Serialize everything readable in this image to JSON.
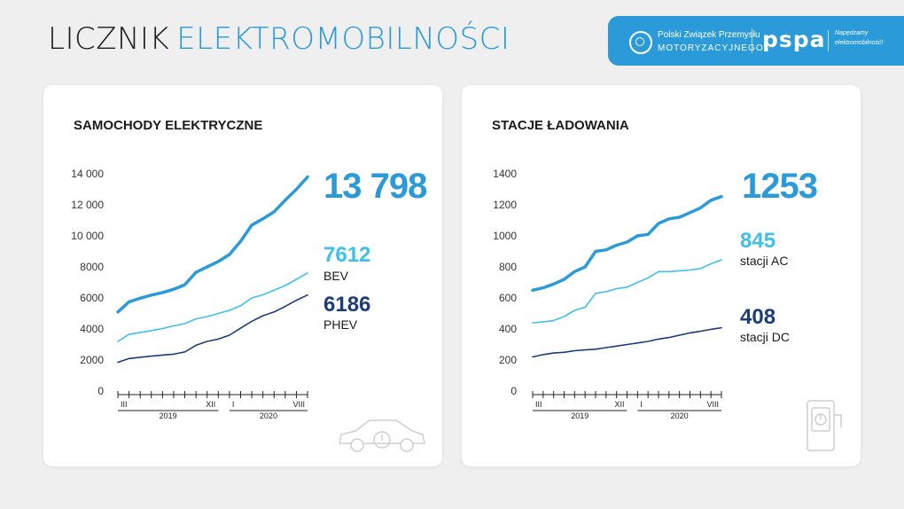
{
  "header": {
    "title_part1": "LICZNIK",
    "title_part2": "ELEKTROMOBILNOŚCI",
    "org1_line1": "Polski Związek Przemysłu",
    "org1_line2": "MOTORYZACYJNEGO",
    "org2_name": "pspa",
    "org2_tagline1": "Napędzamy",
    "org2_tagline2": "elektromobilność!"
  },
  "colors": {
    "accent": "#2a9bd8",
    "light": "#3ec0ea",
    "dark": "#1b3d7a",
    "background": "#efefef"
  },
  "cards": {
    "cars": {
      "title": "SAMOCHODY ELEKTRYCZNE",
      "total": "13 798",
      "s1_value": "7612",
      "s1_label": "BEV",
      "s2_value": "6186",
      "s2_label": "PHEV",
      "icon": "car-icon"
    },
    "stations": {
      "title": "STACJE ŁADOWANIA",
      "total": "1253",
      "s1_value": "845",
      "s1_label": "stacji AC",
      "s2_value": "408",
      "s2_label": "stacji DC",
      "icon": "charger-icon"
    }
  },
  "chart_data": [
    {
      "type": "line",
      "title": "SAMOCHODY ELEKTRYCZNE",
      "ylim": [
        0,
        14000
      ],
      "yticks": [
        "0",
        "2000",
        "4000",
        "6000",
        "8000",
        "10 000",
        "12 000",
        "14 000"
      ],
      "x_tick_labels": [
        "III",
        "XII",
        "I",
        "VIII"
      ],
      "year_labels": [
        "2019",
        "2020"
      ],
      "grid": false,
      "series": [
        {
          "name": "",
          "color": "#2a9bd8",
          "values": [
            5100,
            5750,
            5980,
            6180,
            6350,
            6560,
            6850,
            7650,
            8000,
            8350,
            8800,
            9650,
            10700,
            11100,
            11550,
            12300,
            13000,
            13798
          ]
        },
        {
          "name": "BEV",
          "color": "#3ec0ea",
          "values": [
            3200,
            3650,
            3780,
            3900,
            4030,
            4200,
            4350,
            4650,
            4800,
            5000,
            5200,
            5500,
            6000,
            6200,
            6500,
            6800,
            7200,
            7612
          ]
        },
        {
          "name": "PHEV",
          "color": "#1b3d7a",
          "values": [
            1850,
            2100,
            2180,
            2250,
            2320,
            2380,
            2520,
            2950,
            3200,
            3350,
            3600,
            4050,
            4500,
            4850,
            5100,
            5450,
            5850,
            6186
          ]
        }
      ]
    },
    {
      "type": "line",
      "title": "STACJE ŁADOWANIA",
      "ylim": [
        0,
        1400
      ],
      "yticks": [
        "0",
        "200",
        "400",
        "600",
        "800",
        "1000",
        "1200",
        "1400"
      ],
      "x_tick_labels": [
        "III",
        "XII",
        "I",
        "VIII"
      ],
      "year_labels": [
        "2019",
        "2020"
      ],
      "grid": false,
      "series": [
        {
          "name": "",
          "color": "#2a9bd8",
          "values": [
            650,
            665,
            690,
            720,
            770,
            800,
            900,
            910,
            940,
            960,
            1000,
            1010,
            1080,
            1110,
            1120,
            1150,
            1180,
            1230,
            1253
          ]
        },
        {
          "name": "stacji AC",
          "color": "#3ec0ea",
          "values": [
            440,
            445,
            455,
            480,
            520,
            540,
            630,
            640,
            660,
            670,
            700,
            730,
            770,
            770,
            775,
            780,
            790,
            820,
            845
          ]
        },
        {
          "name": "stacji DC",
          "color": "#1b3d7a",
          "values": [
            220,
            235,
            245,
            250,
            260,
            265,
            270,
            280,
            290,
            300,
            310,
            320,
            335,
            345,
            360,
            375,
            385,
            398,
            408
          ]
        }
      ]
    }
  ]
}
